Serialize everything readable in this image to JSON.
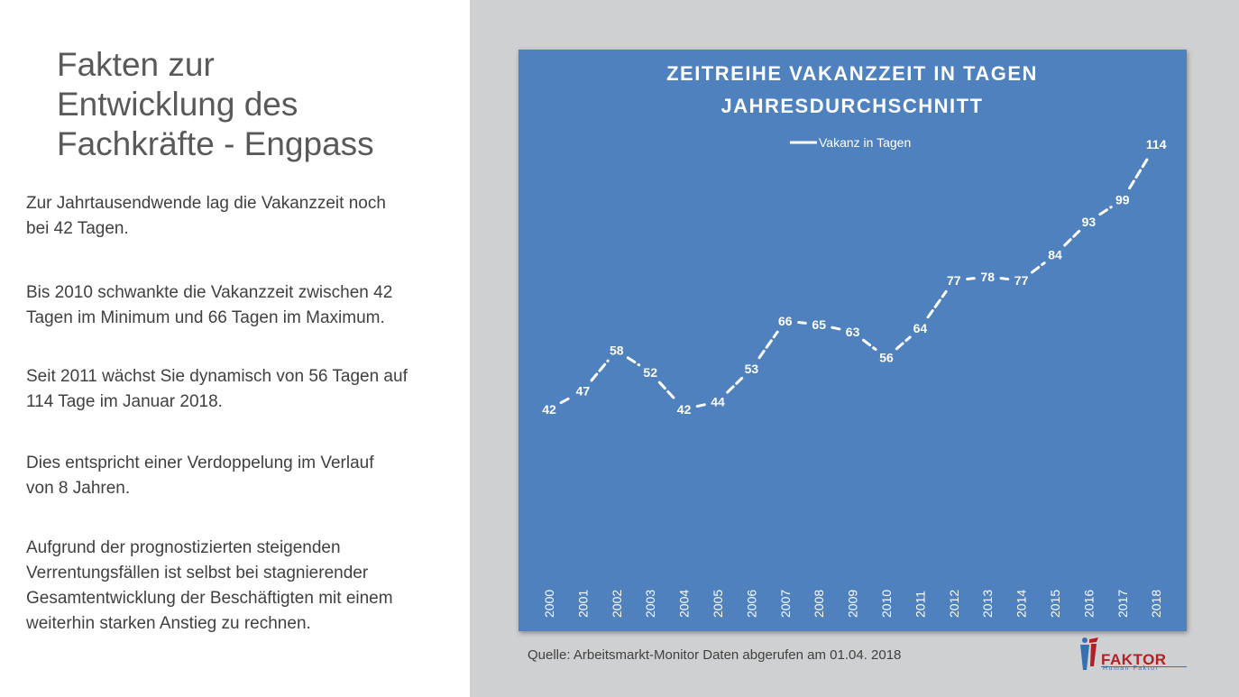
{
  "slide": {
    "title_lines": [
      "Fakten zur",
      "Entwicklung des",
      "Fachkräfte - Engpass"
    ],
    "paragraphs": [
      [
        "Zur Jahrtausendwende lag die Vakanzzeit noch",
        "bei 42 Tagen."
      ],
      [
        "Bis 2010 schwankte die Vakanzzeit zwischen 42",
        "Tagen im Minimum und 66 Tagen im Maximum."
      ],
      [
        "Seit 2011 wächst Sie dynamisch von 56 Tagen auf",
        "114 Tage im Januar 2018."
      ],
      [
        "Dies entspricht einer Verdoppelung im Verlauf",
        "von 8 Jahren."
      ],
      [
        "Aufgrund der prognostizierten steigenden",
        "Verrentungsfällen ist selbst bei stagnierender",
        "Gesamtentwicklung der Beschäftigten mit einem",
        "weiterhin starken Anstieg zu rechnen."
      ]
    ],
    "source": "Quelle: Arbeitsmarkt-Monitor Daten abgerufen am 01.04. 2018",
    "logo": {
      "main": "FAKTOR",
      "sub": "Human Faktor",
      "icon": "human-figure-logo-icon"
    }
  },
  "colors": {
    "chart_background": "#4e81bd",
    "panel_background": "#cfd0d1",
    "line": "#ffffff",
    "logo_red": "#b21f24",
    "logo_blue": "#3a6fb0"
  },
  "chart_data": {
    "type": "line",
    "title_lines": [
      "ZEITREIHE VAKANZZEIT IN TAGEN",
      "JAHRESDURCHSCHNITT"
    ],
    "categories": [
      "2000",
      "2001",
      "2002",
      "2003",
      "2004",
      "2005",
      "2006",
      "2007",
      "2008",
      "2009",
      "2010",
      "2011",
      "2012",
      "2013",
      "2014",
      "2015",
      "2016",
      "2017",
      "2018"
    ],
    "series": [
      {
        "name": "Vakanz in Tagen",
        "values": [
          42,
          47,
          58,
          52,
          42,
          44,
          53,
          66,
          65,
          63,
          56,
          64,
          77,
          78,
          77,
          84,
          93,
          99,
          114
        ]
      }
    ],
    "line_style": "dashed",
    "drop_lines": true,
    "data_labels": true,
    "legend": "top-center",
    "grid": false,
    "ylim": [
      0,
      130
    ]
  }
}
